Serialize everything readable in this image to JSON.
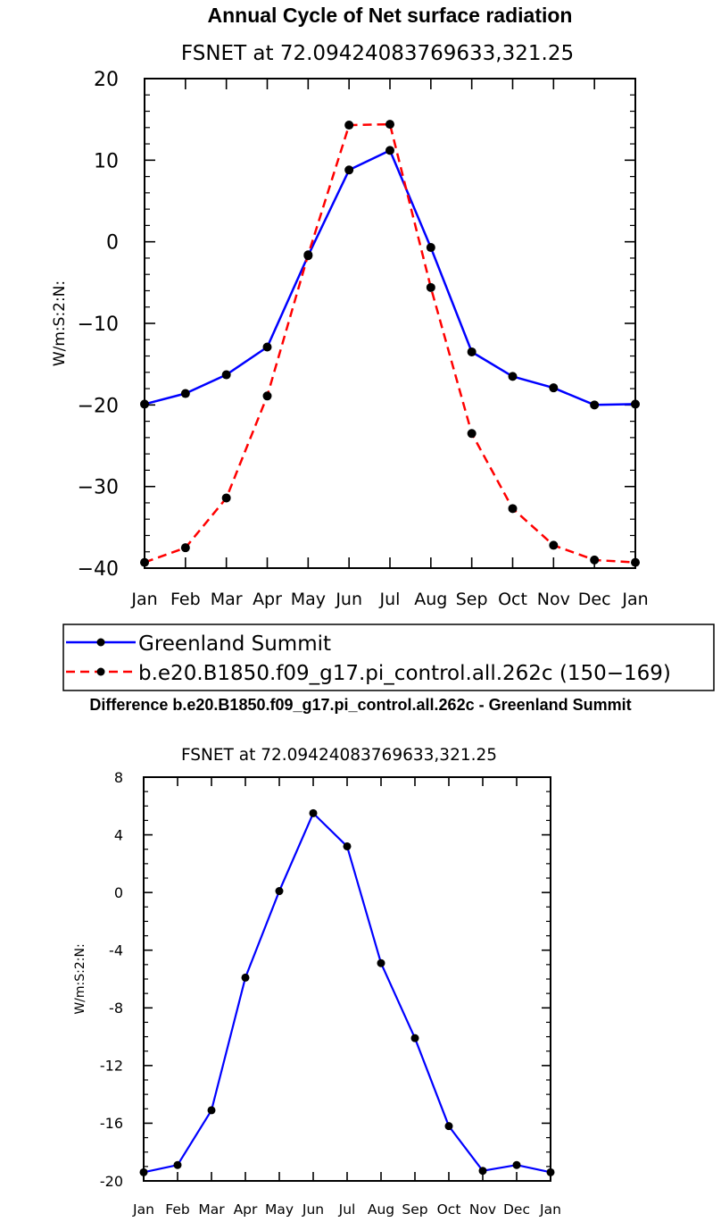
{
  "colors": {
    "greenland": "#0000ff",
    "model": "#ff0000",
    "difference": "#0000ff",
    "marker": "#000000"
  },
  "chart_data": [
    {
      "type": "line",
      "title": "Annual Cycle of Net surface radiation",
      "subtitle": "FSNET at 72.09424083769633,321.25",
      "ylabel": "W/m:S:2:N:",
      "categories": [
        "Jan",
        "Feb",
        "Mar",
        "Apr",
        "May",
        "Jun",
        "Jul",
        "Aug",
        "Sep",
        "Oct",
        "Nov",
        "Dec",
        "Jan"
      ],
      "ylim": [
        -40,
        20
      ],
      "yticks": [
        20,
        10,
        0,
        -10,
        -20,
        -30,
        -40
      ],
      "ytick_labels": [
        "20",
        "10",
        "0",
        "−10",
        "−20",
        "−30",
        "−40"
      ],
      "series": [
        {
          "name": "Greenland Summit",
          "style": "solid",
          "values": [
            -19.9,
            -18.6,
            -16.3,
            -12.9,
            -1.7,
            8.8,
            11.2,
            -0.7,
            -13.5,
            -16.5,
            -17.9,
            -20.0,
            -19.9
          ]
        },
        {
          "name": "b.e20.B1850.f09_g17.pi_control.all.262c (150−169)",
          "style": "dashed",
          "values": [
            -39.3,
            -37.5,
            -31.4,
            -18.9,
            -1.6,
            14.3,
            14.4,
            -5.6,
            -23.5,
            -32.7,
            -37.2,
            -39.0,
            -39.3
          ]
        }
      ]
    },
    {
      "type": "line",
      "title": "Difference b.e20.B1850.f09_g17.pi_control.all.262c - Greenland Summit",
      "subtitle": "FSNET at 72.09424083769633,321.25",
      "ylabel": "W/m:S:2:N:",
      "categories": [
        "Jan",
        "Feb",
        "Mar",
        "Apr",
        "May",
        "Jun",
        "Jul",
        "Aug",
        "Sep",
        "Oct",
        "Nov",
        "Dec",
        "Jan"
      ],
      "ylim": [
        -20,
        8
      ],
      "yticks": [
        8,
        4,
        0,
        -4,
        -8,
        -12,
        -16,
        -20
      ],
      "ytick_labels": [
        "8",
        "4",
        "0",
        "-4",
        "-8",
        "-12",
        "-16",
        "-20"
      ],
      "series": [
        {
          "name": "Difference",
          "style": "solid",
          "values": [
            -19.4,
            -18.9,
            -15.1,
            -5.9,
            0.1,
            5.5,
            3.2,
            -4.9,
            -10.1,
            -16.2,
            -19.3,
            -18.9,
            -19.4
          ]
        }
      ]
    }
  ]
}
